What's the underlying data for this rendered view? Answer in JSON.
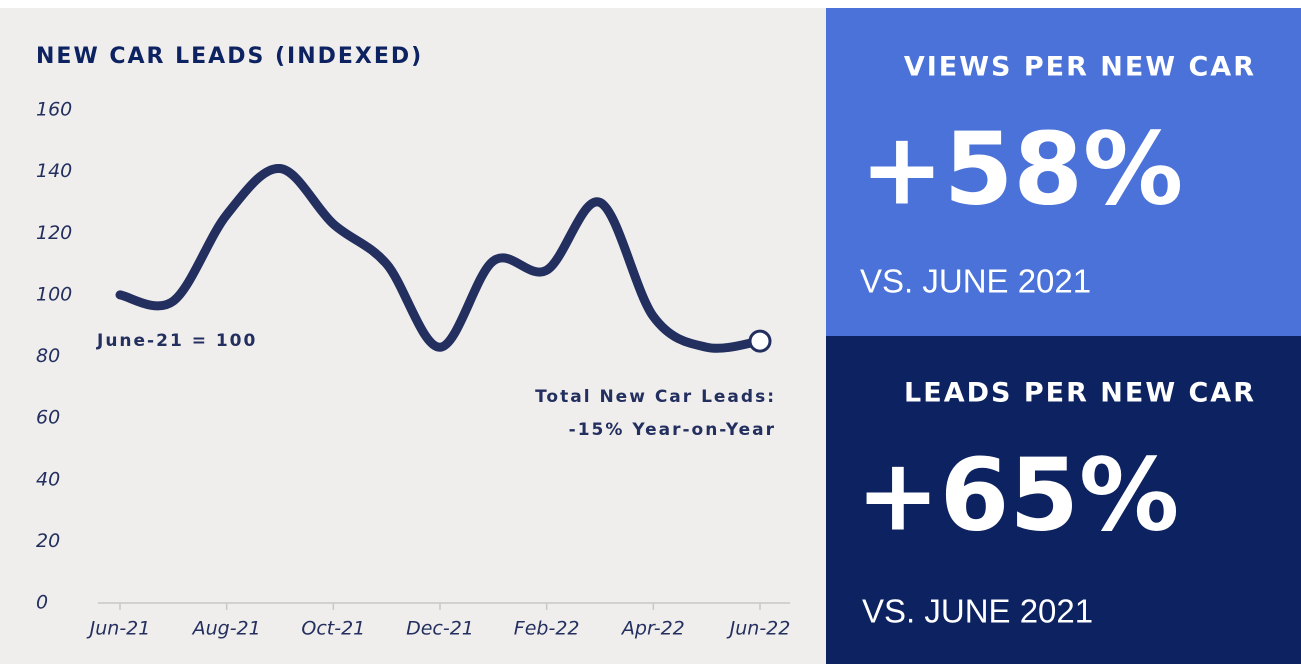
{
  "chart_data": {
    "type": "line",
    "title": "NEW CAR LEADS (INDEXED)",
    "categories": [
      "Jun-21",
      null,
      "Aug-21",
      null,
      "Oct-21",
      null,
      "Dec-21",
      null,
      "Feb-22",
      null,
      "Apr-22",
      null,
      "Jun-22"
    ],
    "values": [
      100,
      98,
      126,
      141,
      123,
      110,
      83,
      111,
      108,
      130,
      93,
      83,
      85
    ],
    "color": "#232f5e",
    "ylim": [
      0,
      160
    ],
    "yticks": [
      0,
      20,
      40,
      60,
      80,
      100,
      120,
      140,
      160
    ],
    "annotations": [
      "June-21 = 100",
      "Total New Car Leads:",
      "-15% Year-on-Year"
    ]
  },
  "panels": [
    {
      "title": "VIEWS PER NEW CAR",
      "value": "+58%",
      "note": "VS. JUNE 2021"
    },
    {
      "title": "LEADS PER NEW CAR",
      "value": "+65%",
      "note": "VS. JUNE 2021"
    }
  ]
}
